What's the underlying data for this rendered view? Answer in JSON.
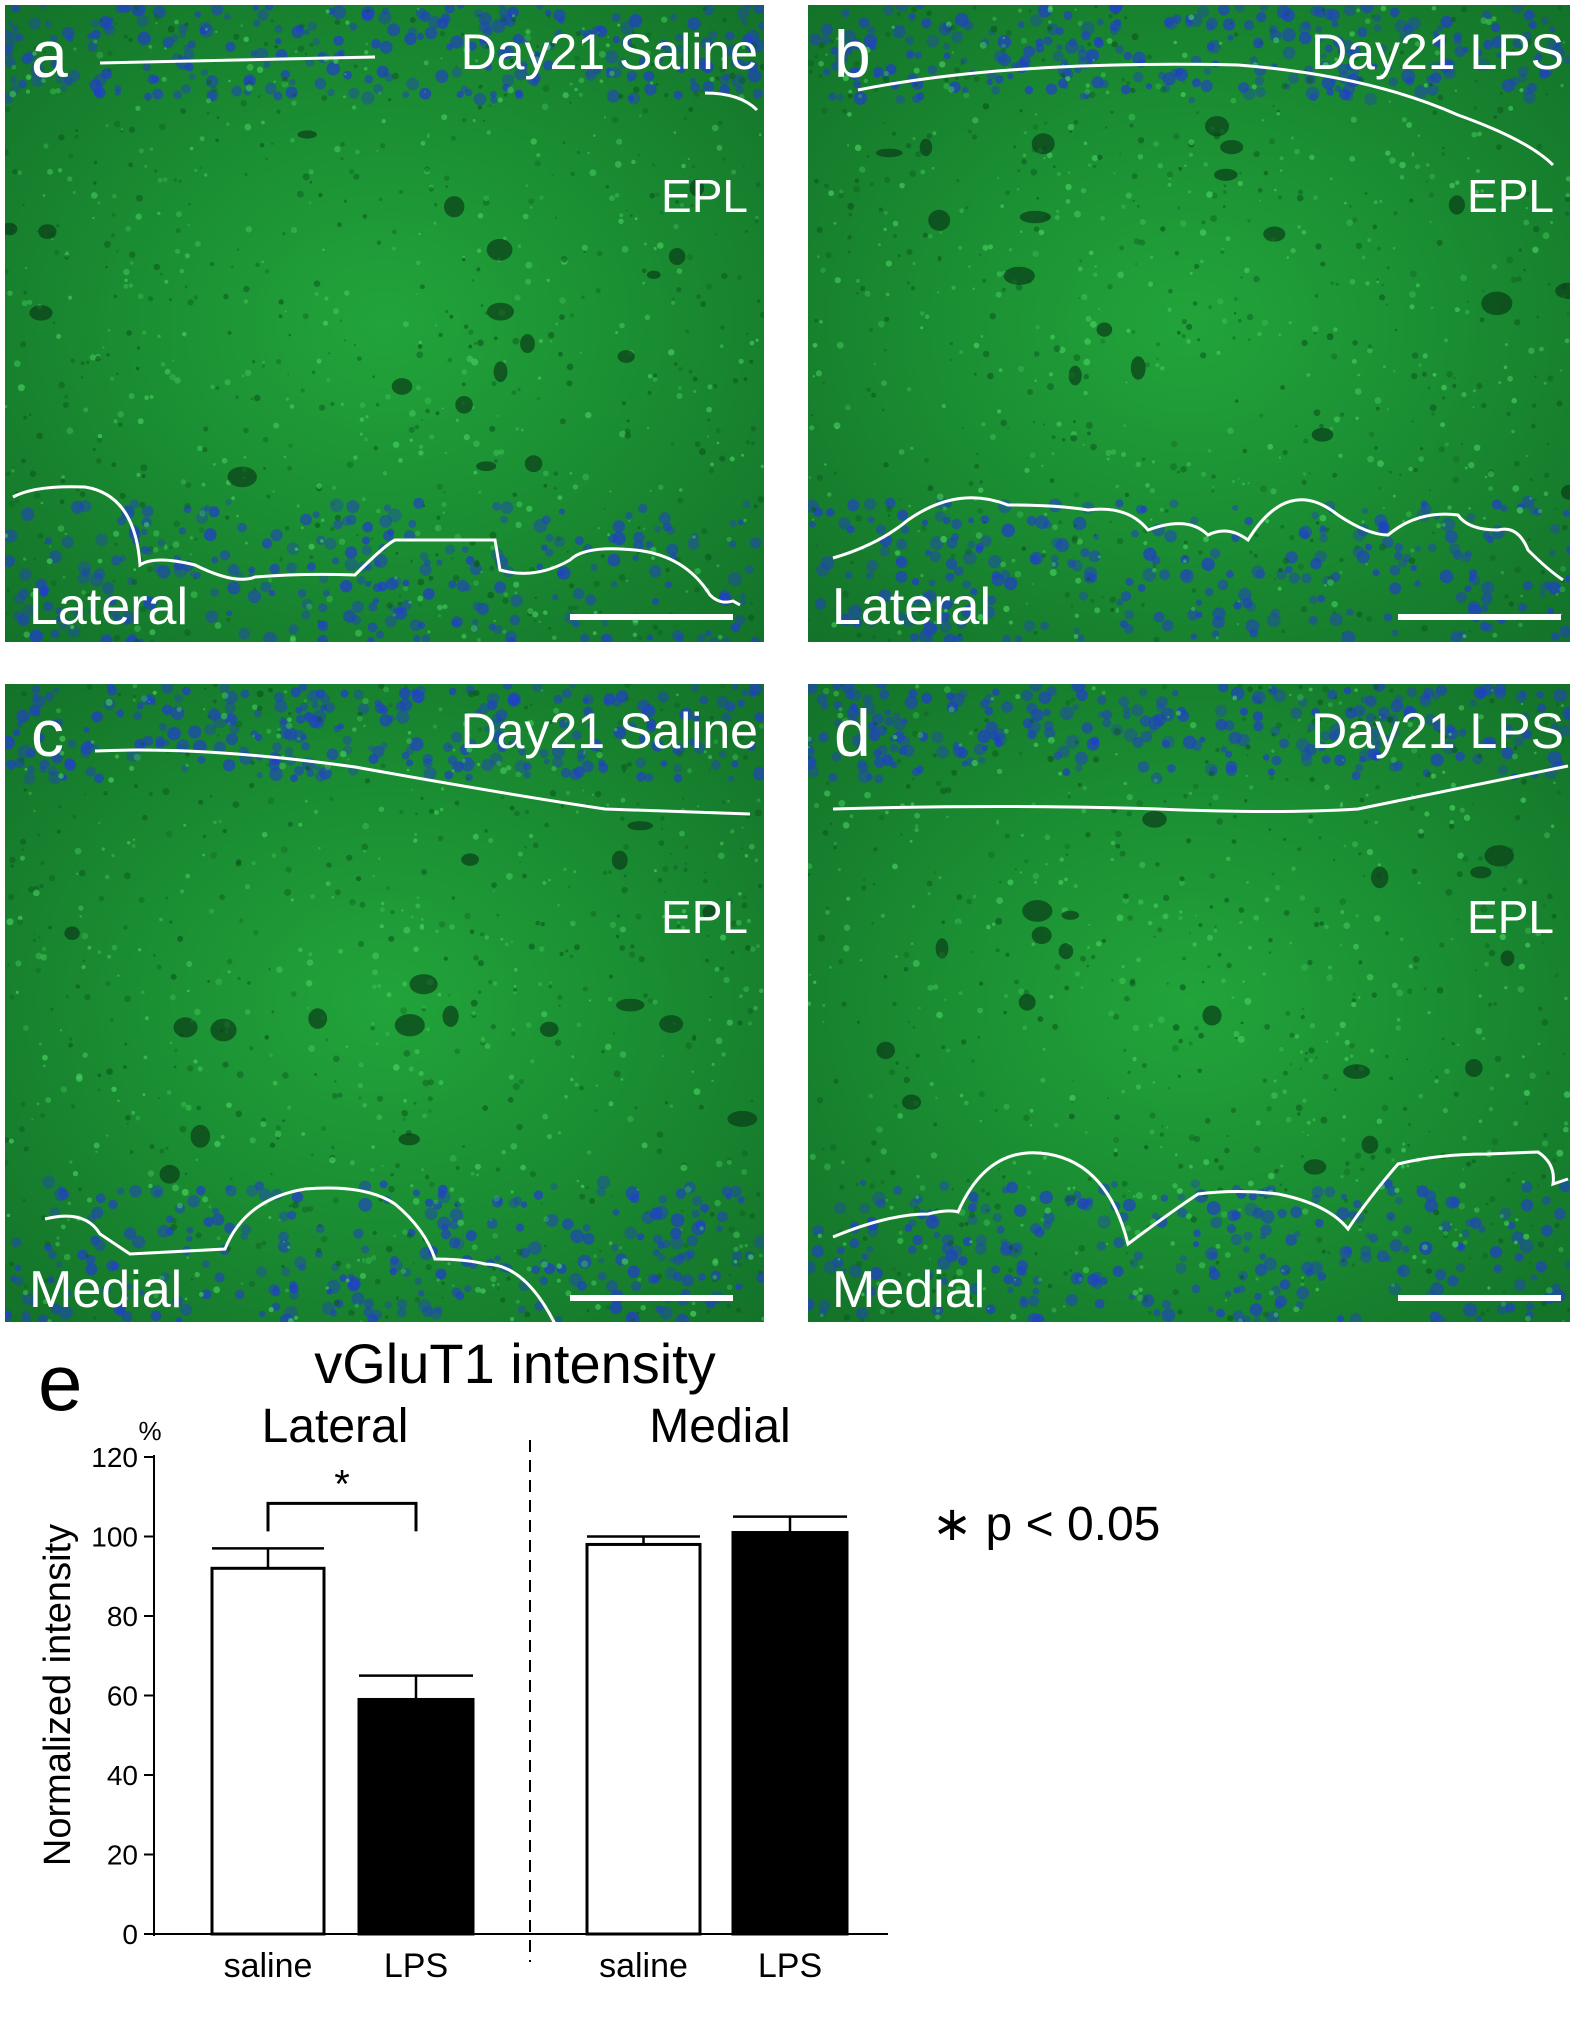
{
  "panels": [
    {
      "letter": "a",
      "title": "Day21 Saline",
      "layer": "EPL",
      "region": "Lateral"
    },
    {
      "letter": "b",
      "title": "Day21 LPS",
      "layer": "EPL",
      "region": "Lateral"
    },
    {
      "letter": "c",
      "title": "Day21 Saline",
      "layer": "EPL",
      "region": "Medial"
    },
    {
      "letter": "d",
      "title": "Day21 LPS",
      "layer": "EPL",
      "region": "Medial"
    }
  ],
  "colors": {
    "tissue_green": "#1b8f33",
    "nuclei_blue": "#2040c8",
    "saline_bar": "#ffffff",
    "lps_bar": "#000000"
  },
  "chart_data": {
    "type": "bar",
    "panel_letter": "e",
    "title": "vGluT1 intensity",
    "ylabel": "Normalized intensity",
    "yunit": "%",
    "ylim": [
      0,
      120
    ],
    "yticks": [
      0,
      20,
      40,
      60,
      80,
      100,
      120
    ],
    "groups": [
      {
        "name": "Lateral",
        "categories": [
          "saline",
          "LPS"
        ],
        "values": [
          92,
          59
        ],
        "errors": [
          5,
          6
        ]
      },
      {
        "name": "Medial",
        "categories": [
          "saline",
          "LPS"
        ],
        "values": [
          98,
          101
        ],
        "errors": [
          2,
          4
        ]
      }
    ],
    "significance": {
      "marker": "*",
      "between": [
        "saline",
        "LPS"
      ],
      "group": "Lateral"
    },
    "legend_note": "∗ p < 0.05"
  }
}
